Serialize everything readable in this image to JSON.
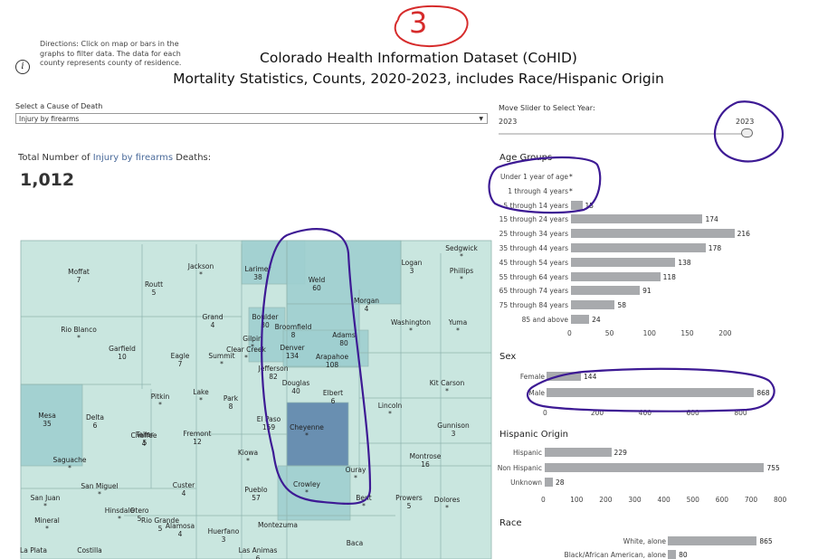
{
  "directions": "Directions: Click on map or bars in the graphs to filter data. The data for each county represents county of residence.",
  "info_icon": "info-icon",
  "title_line1": "Colorado Health Information Dataset (CoHID)",
  "title_line2": "Mortality Statistics, Counts, 2020-2023, includes Race/Hispanic Origin",
  "annotation_number": "3",
  "cause": {
    "label": "Select a Cause of Death",
    "value": "Injury by firearms"
  },
  "slider": {
    "label": "Move Slider to Select Year:",
    "min": "2023",
    "max": "2023"
  },
  "total": {
    "prefix": "Total Number of ",
    "cause": "Injury by firearms",
    "suffix": " Deaths:",
    "value": "1,012"
  },
  "map": {
    "counties": [
      {
        "name": "Moffat",
        "value": "7"
      },
      {
        "name": "Routt",
        "value": "5"
      },
      {
        "name": "Jackson",
        "value": "*"
      },
      {
        "name": "Larimer",
        "value": "38"
      },
      {
        "name": "Weld",
        "value": "60"
      },
      {
        "name": "Logan",
        "value": "3"
      },
      {
        "name": "Sedgwick",
        "value": "*"
      },
      {
        "name": "Phillips",
        "value": "*"
      },
      {
        "name": "Morgan",
        "value": "4"
      },
      {
        "name": "Rio Blanco",
        "value": "*"
      },
      {
        "name": "Grand",
        "value": "4"
      },
      {
        "name": "Boulder",
        "value": "30"
      },
      {
        "name": "Broomfield",
        "value": "8"
      },
      {
        "name": "Gilpin",
        "value": "*"
      },
      {
        "name": "Adams",
        "value": "80"
      },
      {
        "name": "Washington",
        "value": "*"
      },
      {
        "name": "Yuma",
        "value": "*"
      },
      {
        "name": "Garfield",
        "value": "10"
      },
      {
        "name": "Eagle",
        "value": "7"
      },
      {
        "name": "Summit",
        "value": "*"
      },
      {
        "name": "Clear Creek",
        "value": "*"
      },
      {
        "name": "Denver",
        "value": "134"
      },
      {
        "name": "Arapahoe",
        "value": "108"
      },
      {
        "name": "Jefferson",
        "value": "82"
      },
      {
        "name": "Douglas",
        "value": "40"
      },
      {
        "name": "Elbert",
        "value": "6"
      },
      {
        "name": "Kit Carson",
        "value": "*"
      },
      {
        "name": "Pitkin",
        "value": "*"
      },
      {
        "name": "Lake",
        "value": "*"
      },
      {
        "name": "Park",
        "value": "8"
      },
      {
        "name": "Lincoln",
        "value": "*"
      },
      {
        "name": "Mesa",
        "value": "35"
      },
      {
        "name": "Delta",
        "value": "6"
      },
      {
        "name": "Teller",
        "value": "5"
      },
      {
        "name": "El Paso",
        "value": "159"
      },
      {
        "name": "Cheyenne",
        "value": "*"
      },
      {
        "name": "Gunnison",
        "value": "3"
      },
      {
        "name": "Chaffee",
        "value": "4"
      },
      {
        "name": "Fremont",
        "value": "12"
      },
      {
        "name": "Kiowa",
        "value": "*"
      },
      {
        "name": "Montrose",
        "value": "16"
      },
      {
        "name": "Saguache",
        "value": "*"
      },
      {
        "name": "Custer",
        "value": "4"
      },
      {
        "name": "Pueblo",
        "value": "57"
      },
      {
        "name": "Crowley",
        "value": "*"
      },
      {
        "name": "Ouray",
        "value": "*"
      },
      {
        "name": "San Miguel",
        "value": "*"
      },
      {
        "name": "San Juan",
        "value": "*"
      },
      {
        "name": "Hinsdale",
        "value": "*"
      },
      {
        "name": "Otero",
        "value": "5"
      },
      {
        "name": "Bent",
        "value": "*"
      },
      {
        "name": "Prowers",
        "value": "5"
      },
      {
        "name": "Dolores",
        "value": "*"
      },
      {
        "name": "Mineral",
        "value": "*"
      },
      {
        "name": "Rio Grande",
        "value": "5"
      },
      {
        "name": "Alamosa",
        "value": "4"
      },
      {
        "name": "Huerfano",
        "value": "3"
      },
      {
        "name": "Montezuma",
        "value": ""
      },
      {
        "name": "La Plata",
        "value": ""
      },
      {
        "name": "Costilla",
        "value": ""
      },
      {
        "name": "Las Animas",
        "value": "6"
      },
      {
        "name": "Baca",
        "value": ""
      }
    ]
  },
  "age": {
    "title": "Age Groups",
    "axis_ticks": [
      "0",
      "50",
      "100",
      "150",
      "200"
    ],
    "axis_max": 250,
    "rows": [
      {
        "label": "Under 1 year of age",
        "value": 0,
        "display": "*"
      },
      {
        "label": "1 through 4 years",
        "value": 0,
        "display": "*"
      },
      {
        "label": "5 through 14 years",
        "value": 15,
        "display": "15"
      },
      {
        "label": "15 through 24 years",
        "value": 174,
        "display": "174"
      },
      {
        "label": "25 through 34 years",
        "value": 216,
        "display": "216"
      },
      {
        "label": "35 through 44 years",
        "value": 178,
        "display": "178"
      },
      {
        "label": "45 through 54 years",
        "value": 138,
        "display": "138"
      },
      {
        "label": "55 through 64 years",
        "value": 118,
        "display": "118"
      },
      {
        "label": "65 through 74 years",
        "value": 91,
        "display": "91"
      },
      {
        "label": "75 through 84 years",
        "value": 58,
        "display": "58"
      },
      {
        "label": "85 and above",
        "value": 24,
        "display": "24"
      }
    ]
  },
  "sex": {
    "title": "Sex",
    "axis_ticks": [
      "0",
      "200",
      "400",
      "600",
      "800"
    ],
    "axis_max": 950,
    "rows": [
      {
        "label": "Female",
        "value": 144,
        "display": "144"
      },
      {
        "label": "Male",
        "value": 868,
        "display": "868"
      }
    ]
  },
  "hispanic": {
    "title": "Hispanic Origin",
    "axis_ticks": [
      "0",
      "100",
      "200",
      "300",
      "400",
      "500",
      "600",
      "700",
      "800"
    ],
    "axis_max": 850,
    "rows": [
      {
        "label": "Hispanic",
        "value": 229,
        "display": "229"
      },
      {
        "label": "Non Hispanic",
        "value": 755,
        "display": "755"
      },
      {
        "label": "Unknown",
        "value": 28,
        "display": "28"
      }
    ]
  },
  "race": {
    "title": "Race",
    "axis_max": 950,
    "rows": [
      {
        "label": "White, alone",
        "value": 865,
        "display": "865"
      },
      {
        "label": "Black/African American, alone",
        "value": 80,
        "display": "80"
      }
    ]
  },
  "colors": {
    "map_light": "#c9e6df",
    "map_mid": "#9fcfd0",
    "map_dark": "#5f86ad",
    "bar": "#a8aaad",
    "annotation_red": "#d62b2b",
    "annotation_purple": "#3d1a94"
  }
}
